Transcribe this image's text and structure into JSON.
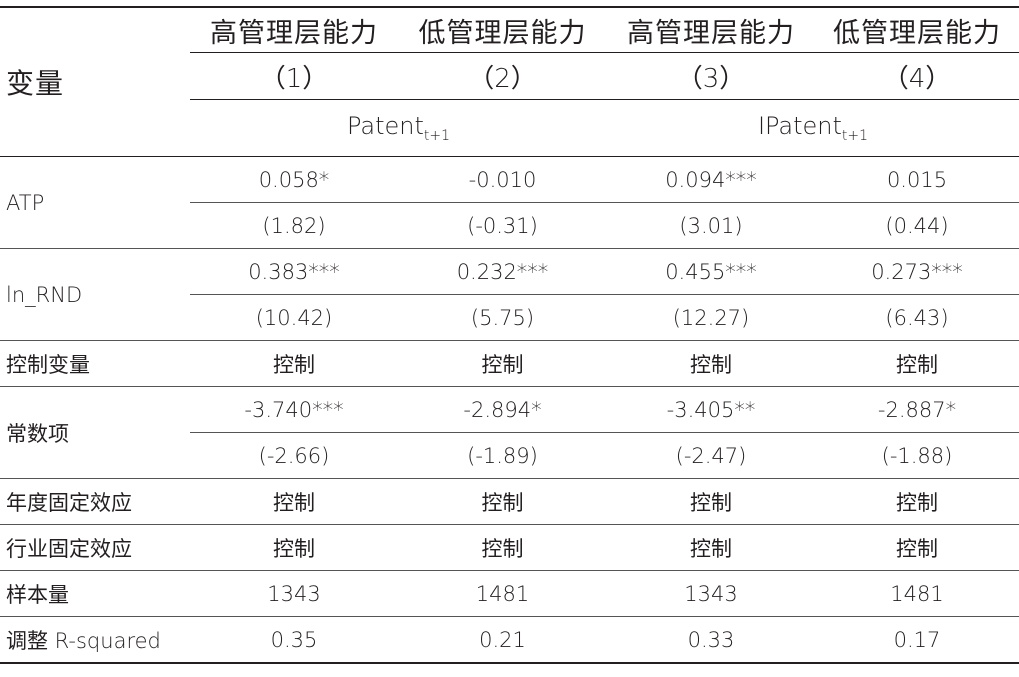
{
  "header": {
    "row_label": "变量",
    "groups": [
      "高管理层能力",
      "低管理层能力",
      "高管理层能力",
      "低管理层能力"
    ],
    "columns": [
      "（1）",
      "（2）",
      "（3）",
      "（4）"
    ],
    "dependents": [
      {
        "name": "Patent",
        "sub": "t+1"
      },
      {
        "name": "IPatent",
        "sub": "t+1"
      }
    ]
  },
  "rows": [
    {
      "label": "ATP",
      "coef": [
        "0.058*",
        "-0.010",
        "0.094***",
        "0.015"
      ],
      "t": [
        "(1.82)",
        "(-0.31)",
        "(3.01)",
        "(0.44)"
      ]
    },
    {
      "label": "ln_RND",
      "coef": [
        "0.383***",
        "0.232***",
        "0.455***",
        "0.273***"
      ],
      "t": [
        "(10.42)",
        "(5.75)",
        "(12.27)",
        "(6.43)"
      ]
    },
    {
      "label": "控制变量",
      "values": [
        "控制",
        "控制",
        "控制",
        "控制"
      ]
    },
    {
      "label": "常数项",
      "coef": [
        "-3.740***",
        "-2.894*",
        "-3.405**",
        "-2.887*"
      ],
      "t": [
        "(-2.66)",
        "(-1.89)",
        "(-2.47)",
        "(-1.88)"
      ]
    },
    {
      "label": "年度固定效应",
      "values": [
        "控制",
        "控制",
        "控制",
        "控制"
      ]
    },
    {
      "label": "行业固定效应",
      "values": [
        "控制",
        "控制",
        "控制",
        "控制"
      ]
    },
    {
      "label": "样本量",
      "values": [
        "1343",
        "1481",
        "1343",
        "1481"
      ]
    },
    {
      "label": "调整 R-squared",
      "values": [
        "0.35",
        "0.21",
        "0.33",
        "0.17"
      ]
    }
  ]
}
